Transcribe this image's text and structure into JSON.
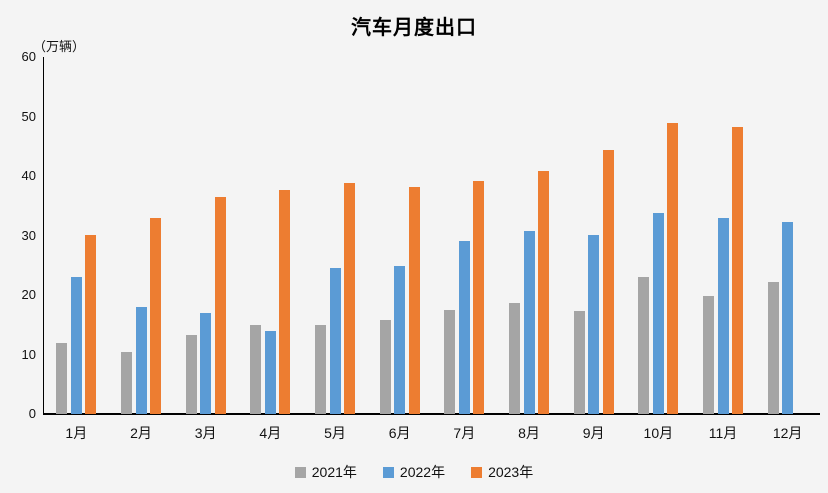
{
  "chart_data": {
    "type": "bar",
    "title": "汽车月度出口",
    "unit_label": "（万辆）",
    "categories": [
      "1月",
      "2月",
      "3月",
      "4月",
      "5月",
      "6月",
      "7月",
      "8月",
      "9月",
      "10月",
      "11月",
      "12月"
    ],
    "series": [
      {
        "name": "2021年",
        "color": "#A5A5A5",
        "values": [
          11.9,
          10.5,
          13.2,
          15.0,
          15.0,
          15.8,
          17.4,
          18.7,
          17.3,
          23.0,
          19.9,
          22.2
        ]
      },
      {
        "name": "2022年",
        "color": "#5B9BD5",
        "values": [
          23.1,
          18.0,
          17.0,
          14.0,
          24.5,
          24.9,
          29.0,
          30.8,
          30.1,
          33.7,
          32.9,
          32.3
        ]
      },
      {
        "name": "2023年",
        "color": "#ED7D31",
        "values": [
          30.1,
          33.0,
          36.5,
          37.6,
          38.9,
          38.2,
          39.2,
          40.8,
          44.4,
          48.9,
          48.2,
          null
        ]
      }
    ],
    "ylim": [
      0,
      60
    ],
    "yticks": [
      0,
      10,
      20,
      30,
      40,
      50,
      60
    ],
    "grid": false,
    "legend_position": "bottom",
    "background_color": "#F4F4F4",
    "axis_color": "#000000"
  }
}
